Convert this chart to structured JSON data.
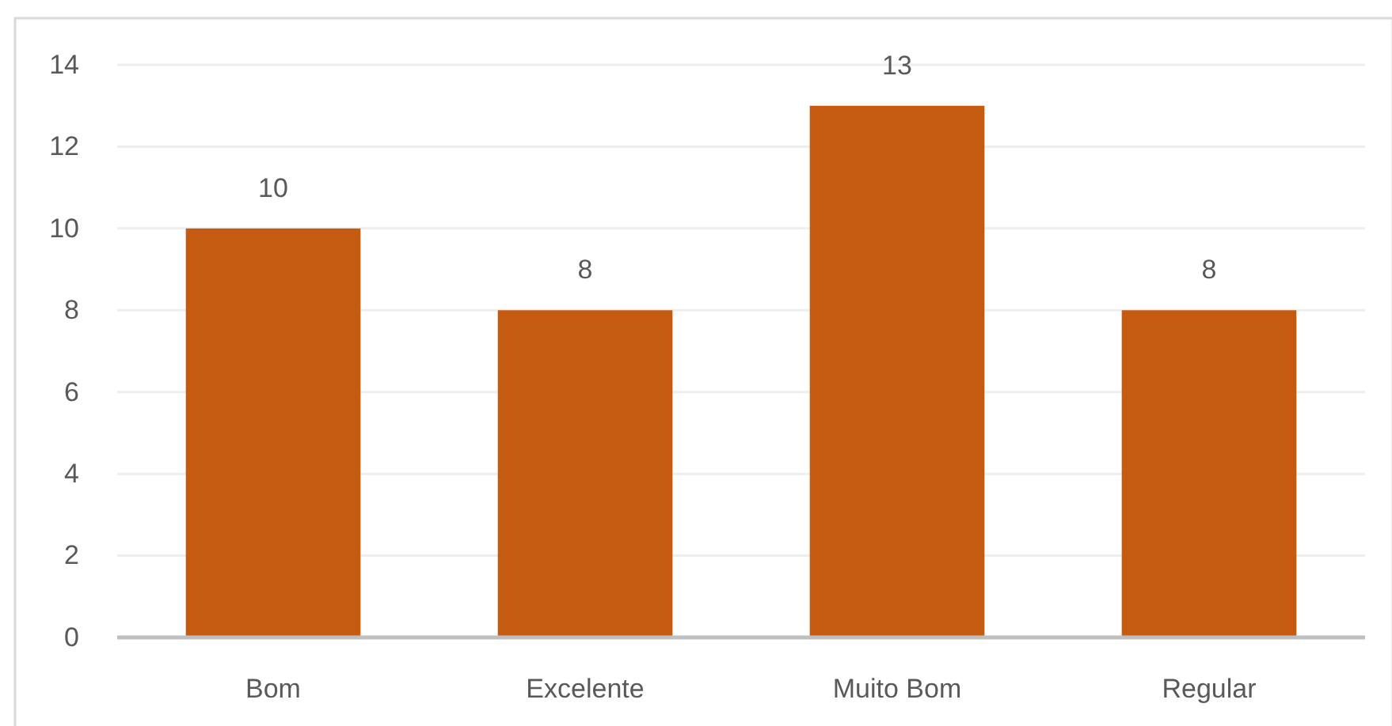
{
  "chart_data": {
    "type": "bar",
    "categories": [
      "Bom",
      "Excelente",
      "Muito Bom",
      "Regular"
    ],
    "values": [
      10,
      8,
      13,
      8
    ],
    "color": "#c55a11",
    "ylim": [
      0,
      14
    ],
    "yticks": [
      0,
      2,
      4,
      6,
      8,
      10,
      12,
      14
    ],
    "grid": "y",
    "data_labels": true
  }
}
